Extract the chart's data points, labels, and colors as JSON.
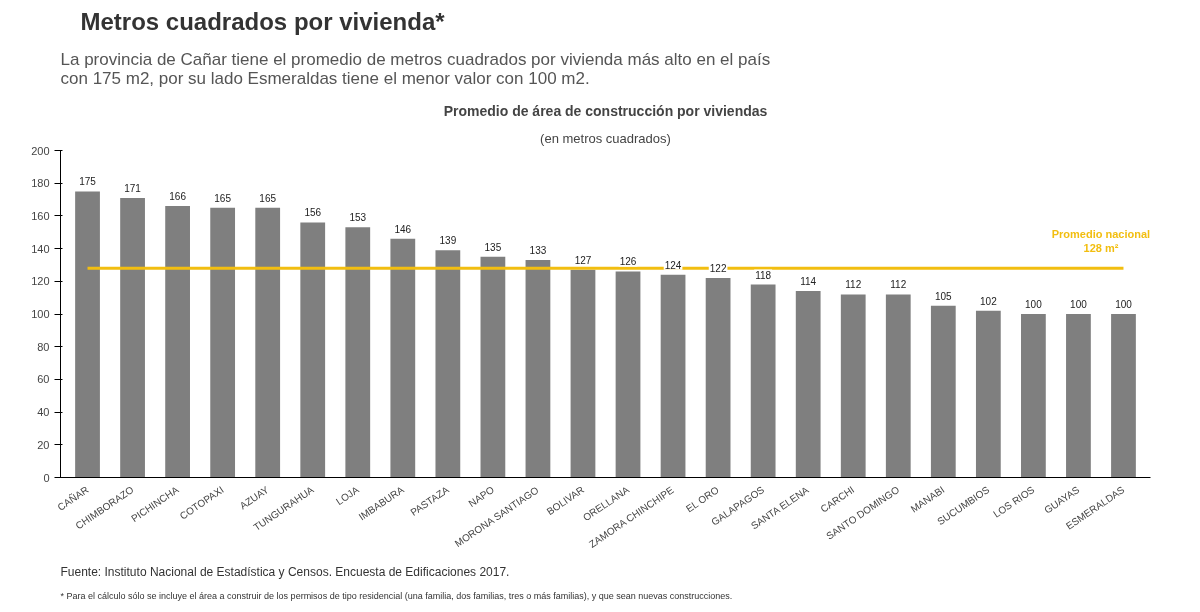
{
  "chart_data": {
    "type": "bar",
    "title": "Metros cuadrados por vivienda*",
    "subtitle": "La provincia de Cañar tiene el promedio de metros cuadrados por vivienda más alto en el país\ncon 175 m2, por su lado Esmeraldas tiene el menor valor con 100 m2.",
    "annotations": [
      "Promedio de área de construcción por viviendas",
      "(en metros cuadrados)",
      "Fuente: Instituto Nacional de Estadística y Censos. Encuesta de Edificaciones 2017.",
      "* Para el cálculo sólo se incluye el área a construir de los permisos de tipo residencial (una familia, dos familias, tres o más familias), y que sean nuevas construcciones."
    ],
    "categories": [
      "CAÑAR",
      "CHIMBORAZO",
      "PICHINCHA",
      "COTOPAXI",
      "AZUAY",
      "TUNGURAHUA",
      "LOJA",
      "IMBABURA",
      "PASTAZA",
      "NAPO",
      "MORONA SANTIAGO",
      "BOLIVAR",
      "ORELLANA",
      "ZAMORA CHINCHIPE",
      "EL ORO",
      "GALAPAGOS",
      "SANTA ELENA",
      "CARCHI",
      "SANTO DOMINGO",
      "MANABI",
      "SUCUMBIOS",
      "LOS RIOS",
      "GUAYAS",
      "ESMERALDAS"
    ],
    "values": [
      175,
      171,
      166,
      165,
      165,
      156,
      153,
      146,
      139,
      135,
      133,
      127,
      126,
      124,
      122,
      118,
      114,
      112,
      112,
      105,
      102,
      100,
      100,
      100
    ],
    "color": "#7f7f7f",
    "ylim": [
      0,
      200
    ],
    "yticks": [
      0,
      20,
      40,
      60,
      80,
      100,
      120,
      140,
      160,
      180,
      200
    ],
    "data_labels": true,
    "grid": false,
    "ref_lines": [
      {
        "axis": "y",
        "value": 128,
        "label": "Promedio nacional\n128 m²",
        "color": "#f2be10"
      }
    ]
  }
}
